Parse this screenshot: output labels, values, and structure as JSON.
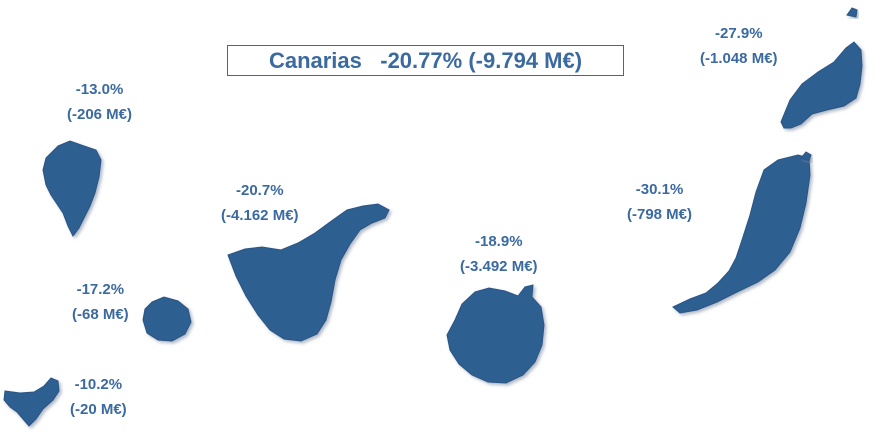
{
  "title": {
    "region": "Canarias",
    "pct": "-20.77%",
    "amount": "(-9.794 M€)"
  },
  "colors": {
    "island_fill": "#2f5f91",
    "text": "#3b6aa0"
  },
  "islands": {
    "la_palma": {
      "pct": "-13.0%",
      "amount": "(-206 M€)"
    },
    "la_gomera": {
      "pct": "-17.2%",
      "amount": "(-68 M€)"
    },
    "el_hierro": {
      "pct": "-10.2%",
      "amount": "(-20 M€)"
    },
    "tenerife": {
      "pct": "-20.7%",
      "amount": "(-4.162 M€)"
    },
    "gran_canaria": {
      "pct": "-18.9%",
      "amount": "(-3.492 M€)"
    },
    "fuerteventura": {
      "pct": "-30.1%",
      "amount": "(-798 M€)"
    },
    "lanzarote": {
      "pct": "-27.9%",
      "amount": "(-1.048 M€)"
    }
  }
}
